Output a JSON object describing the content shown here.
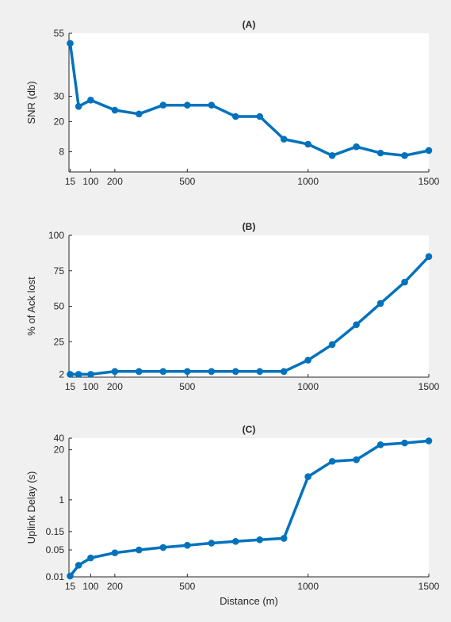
{
  "chart_data": [
    {
      "type": "line",
      "title": "(A)",
      "xlabel": "",
      "ylabel": "SNR (db)",
      "xlim": [
        10,
        1500
      ],
      "ylim": [
        0,
        55
      ],
      "xticks": [
        15,
        100,
        200,
        500,
        1000,
        1500
      ],
      "yticks": [
        8,
        20,
        30,
        55
      ],
      "yscale": "linear",
      "grid": false,
      "color": "#0072bd",
      "series": [
        {
          "x": [
            15,
            50,
            100,
            200,
            300,
            400,
            500,
            600,
            700,
            800,
            900,
            1000,
            1100,
            1200,
            1300,
            1400,
            1500
          ],
          "y": [
            51,
            26,
            28.5,
            24.5,
            23,
            26.5,
            26.5,
            26.5,
            22,
            22,
            13,
            11,
            6.5,
            10,
            7.5,
            6.5,
            8.5
          ]
        }
      ]
    },
    {
      "type": "line",
      "title": "(B)",
      "xlabel": "",
      "ylabel": "% of Ack  lost",
      "xlim": [
        10,
        1500
      ],
      "ylim": [
        0,
        100
      ],
      "xticks": [
        15,
        100,
        200,
        500,
        1000,
        1500
      ],
      "yticks": [
        2,
        25,
        50,
        75,
        100
      ],
      "yscale": "linear",
      "grid": false,
      "color": "#0072bd",
      "series": [
        {
          "x": [
            15,
            50,
            100,
            200,
            300,
            400,
            500,
            600,
            700,
            800,
            900,
            1000,
            1100,
            1200,
            1300,
            1400,
            1500
          ],
          "y": [
            2,
            2,
            2,
            4,
            4,
            4,
            4,
            4,
            4,
            4,
            4,
            12,
            23,
            37,
            52,
            67,
            85
          ]
        }
      ]
    },
    {
      "type": "line",
      "title": "(C)",
      "xlabel": "Distance (m)",
      "ylabel": "Uplink Delay (s)",
      "xlim": [
        10,
        1500
      ],
      "ylim": [
        0.01,
        40
      ],
      "xticks": [
        15,
        100,
        200,
        500,
        1000,
        1500
      ],
      "yticks": [
        0.01,
        0.05,
        0.15,
        1,
        20,
        40
      ],
      "ytick_labels": [
        "0.01",
        "0.05",
        "0.15",
        "1",
        "20",
        "40"
      ],
      "yscale": "log",
      "grid": false,
      "color": "#0072bd",
      "series": [
        {
          "x": [
            15,
            50,
            100,
            200,
            300,
            400,
            500,
            600,
            700,
            800,
            900,
            1000,
            1100,
            1200,
            1300,
            1400,
            1500
          ],
          "y": [
            0.0105,
            0.02,
            0.031,
            0.042,
            0.05,
            0.058,
            0.066,
            0.075,
            0.083,
            0.092,
            0.1,
            4,
            10,
            11,
            27,
            30,
            34
          ]
        }
      ]
    }
  ]
}
